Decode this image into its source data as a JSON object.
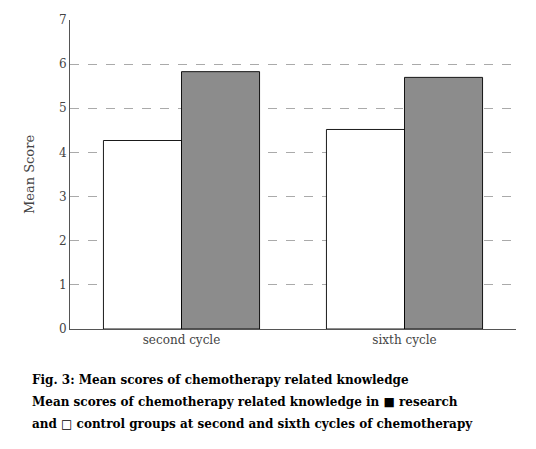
{
  "chart_data": {
    "type": "bar",
    "categories": [
      "second cycle",
      "sixth cycle"
    ],
    "series": [
      {
        "color": "#ffffff",
        "values": [
          4.27,
          4.52
        ]
      },
      {
        "color": "#8c8c8c",
        "values": [
          5.83,
          5.7
        ]
      }
    ],
    "ylabel": "Mean Score",
    "ylim": [
      0,
      7
    ],
    "yticks": [
      0,
      1,
      2,
      3,
      4,
      5,
      6,
      7
    ],
    "grid": true,
    "annotations": [
      "Fig. 3: Mean scores of chemotherapy related knowledge",
      "Mean scores of chemotherapy related knowledge in ■ research",
      "and □ control groups at second and sixth cycles of chemotherapy"
    ]
  }
}
